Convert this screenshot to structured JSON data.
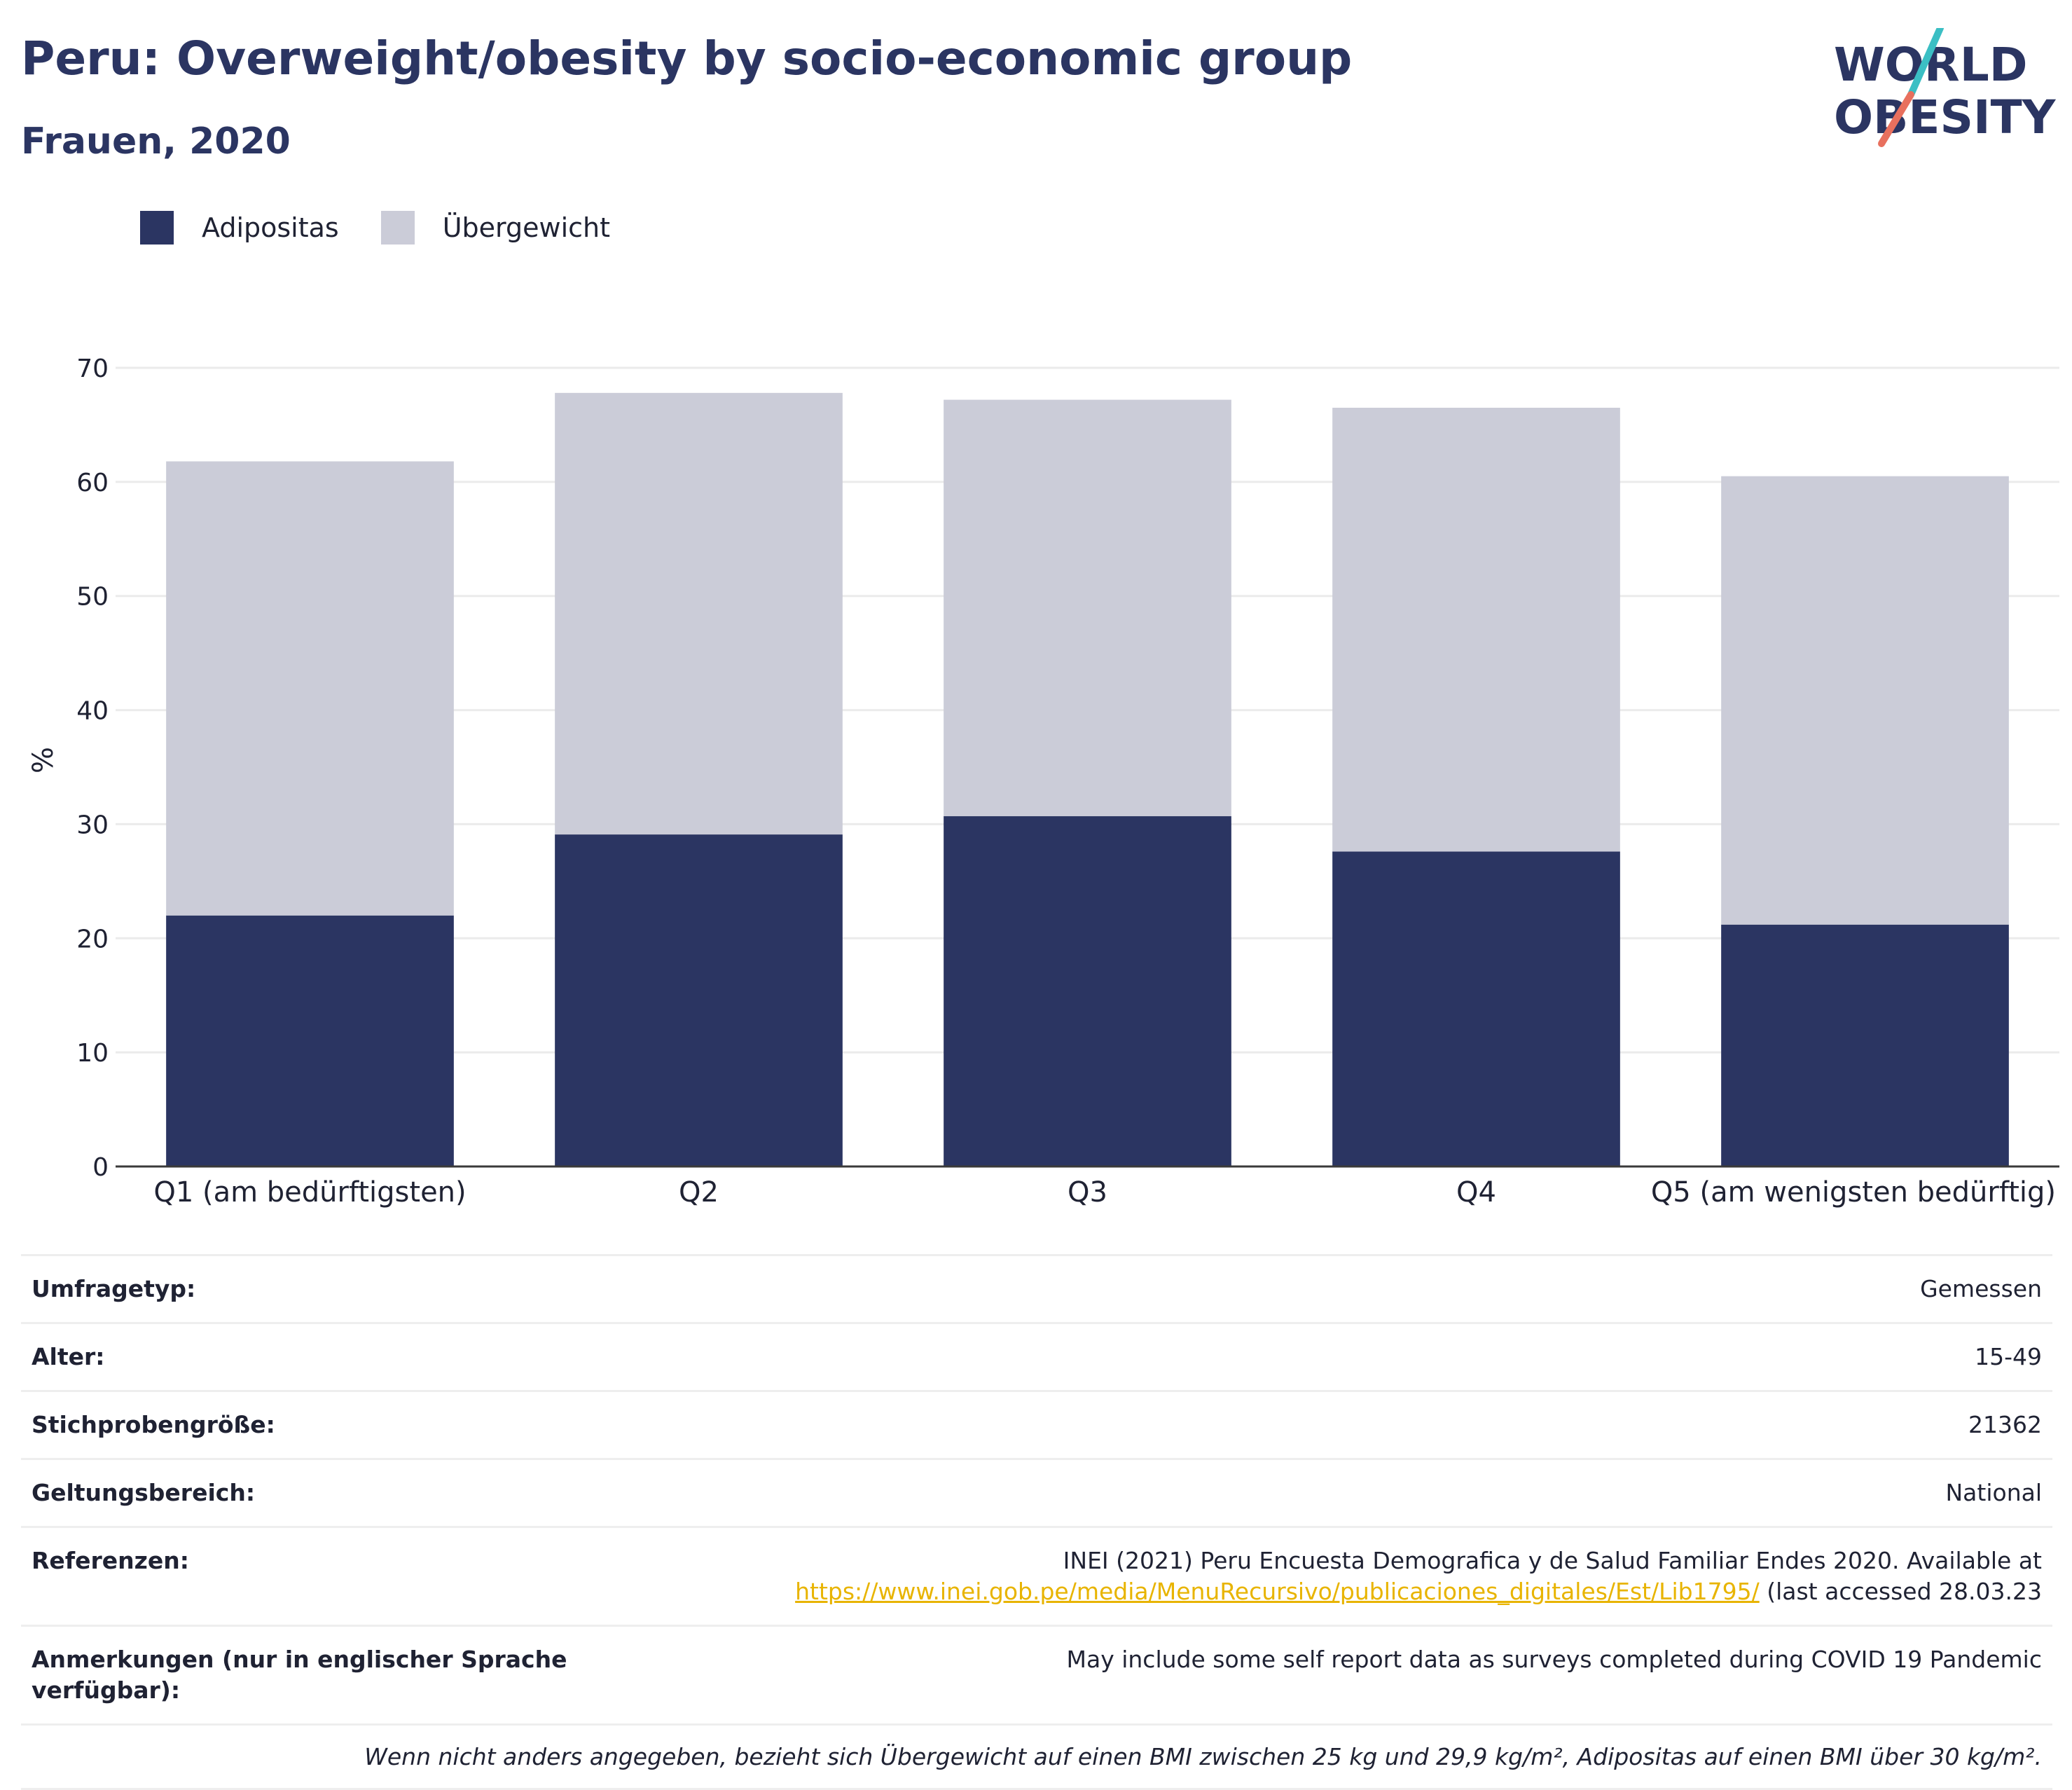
{
  "header": {
    "title": "Peru: Overweight/obesity by socio-economic group",
    "subtitle": "Frauen, 2020"
  },
  "logo": {
    "line1": "WORLD",
    "line2": "OBESITY",
    "colors": {
      "text": "#2b3562",
      "slash_top": "#3bbfc4",
      "slash_bottom": "#e8705e"
    }
  },
  "legend": [
    {
      "label": "Adipositas",
      "color": "#2b3562"
    },
    {
      "label": "Übergewicht",
      "color": "#cbccd8"
    }
  ],
  "chart_data": {
    "type": "bar",
    "stacked": true,
    "categories": [
      "Q1 (am bedürftigsten)",
      "Q2",
      "Q3",
      "Q4",
      "Q5 (am wenigsten bedürftig)"
    ],
    "series": [
      {
        "name": "Adipositas",
        "color": "#2b3562",
        "values": [
          22.0,
          29.1,
          30.7,
          27.6,
          21.2
        ]
      },
      {
        "name": "Übergewicht",
        "color": "#cbccd8",
        "values": [
          39.8,
          38.7,
          36.5,
          38.9,
          39.3
        ]
      }
    ],
    "ylabel": "%",
    "ylim": [
      0,
      70
    ],
    "yticks": [
      0,
      10,
      20,
      30,
      40,
      50,
      60,
      70
    ],
    "grid": true,
    "legend_position": "top-left"
  },
  "info_table": [
    {
      "key": "Umfragetyp:",
      "value": "Gemessen"
    },
    {
      "key": "Alter:",
      "value": "15-49"
    },
    {
      "key": "Stichprobengröße:",
      "value": "21362"
    },
    {
      "key": "Geltungsbereich:",
      "value": "National"
    },
    {
      "key": "Referenzen:",
      "value": "INEI (2021) Peru Encuesta Demografica y de Salud Familiar Endes 2020. Available at",
      "link": "https://www.inei.gob.pe/media/MenuRecursivo/publicaciones_digitales/Est/Lib1795/",
      "suffix": " (last accessed 28.03.23"
    },
    {
      "key": "Anmerkungen (nur in englischer Sprache verfügbar):",
      "value": "May include some self report data as surveys completed during COVID 19 Pandemic"
    }
  ],
  "footnote": "Wenn nicht anders angegeben, bezieht sich Übergewicht auf einen BMI zwischen 25 kg und 29,9 kg/m², Adipositas auf einen BMI über 30 kg/m²."
}
